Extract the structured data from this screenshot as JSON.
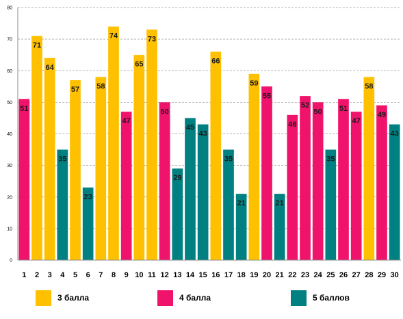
{
  "chart_data": {
    "type": "bar",
    "categories": [
      "1",
      "2",
      "3",
      "4",
      "5",
      "6",
      "7",
      "8",
      "9",
      "10",
      "11",
      "12",
      "13",
      "14",
      "15",
      "16",
      "17",
      "18",
      "19",
      "20",
      "21",
      "22",
      "23",
      "24",
      "25",
      "26",
      "27",
      "28",
      "29",
      "30"
    ],
    "values": [
      51,
      71,
      64,
      35,
      57,
      23,
      58,
      74,
      47,
      65,
      73,
      50,
      29,
      45,
      43,
      66,
      35,
      21,
      59,
      55,
      21,
      46,
      52,
      50,
      35,
      51,
      47,
      58,
      49,
      43
    ],
    "groups": [
      "4 балла",
      "3 балла",
      "3 балла",
      "5 баллов",
      "3 балла",
      "5 баллов",
      "3 балла",
      "3 балла",
      "4 балла",
      "3 балла",
      "3 балла",
      "4 балла",
      "5 баллов",
      "5 баллов",
      "5 баллов",
      "3 балла",
      "5 баллов",
      "5 баллов",
      "3 балла",
      "4 балла",
      "5 баллов",
      "4 балла",
      "4 балла",
      "4 балла",
      "5 баллов",
      "4 балла",
      "4 балла",
      "3 балла",
      "4 балла",
      "5 баллов"
    ],
    "ylim": [
      0,
      80
    ],
    "yticks": [
      0,
      10,
      20,
      30,
      40,
      50,
      60,
      70,
      80
    ],
    "grid": true,
    "legend_position": "bottom",
    "legend": [
      {
        "label": "3 балла",
        "color": "#FFC000"
      },
      {
        "label": "4 балла",
        "color": "#F0136B"
      },
      {
        "label": "5 баллов",
        "color": "#008080"
      }
    ]
  }
}
